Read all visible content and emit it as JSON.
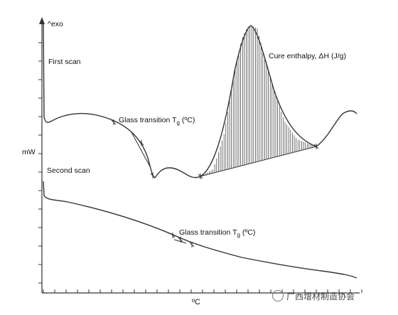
{
  "chart_data": {
    "type": "line",
    "title": "",
    "xlabel": "ºC",
    "ylabel": "mW",
    "y_direction_label": "^exo",
    "grid": false,
    "legend": "none",
    "series": [
      {
        "name": "First scan",
        "label": "First scan"
      },
      {
        "name": "Second scan",
        "label": "Second scan"
      }
    ],
    "annotations": [
      {
        "id": "tg1",
        "text": "Glass transition",
        "sub": "g",
        "pre": "T",
        "unit": "(ºC)",
        "series": "First scan"
      },
      {
        "id": "cure",
        "text": "Cure enthalpy, ΔH (J/g)",
        "series": "First scan"
      },
      {
        "id": "tg2",
        "text": "Glass transition",
        "sub": "g",
        "pre": "T",
        "unit": "(ºC)",
        "series": "Second scan"
      }
    ],
    "colors": {
      "line": "#333333",
      "hatch": "#333333",
      "axis": "#333333"
    }
  },
  "watermark": {
    "text": "广西增材制造协会"
  }
}
